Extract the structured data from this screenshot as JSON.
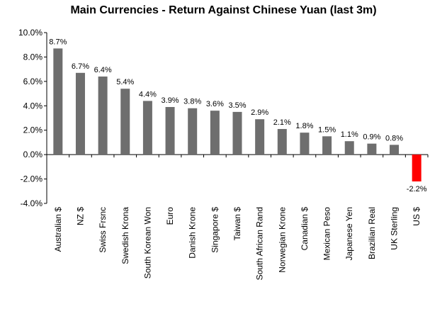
{
  "chart_data": {
    "type": "bar",
    "title": "Main Currencies - Return Against Chinese Yuan (last 3m)",
    "xlabel": "",
    "ylabel": "",
    "ylim": [
      -4.0,
      10.0
    ],
    "ytick_step": 2.0,
    "yticks": [
      "10.0%",
      "8.0%",
      "6.0%",
      "4.0%",
      "2.0%",
      "0.0%",
      "-2.0%",
      "-4.0%"
    ],
    "grid": false,
    "legend": "none",
    "categories": [
      "Australian $",
      "NZ $",
      "Swiss Frsnc",
      "Swedish Krona",
      "South Korean Won",
      "Euro",
      "Danish Krone",
      "Singapore $",
      "Taiwan $",
      "South African Rand",
      "Norwegian Krone",
      "Canadian $",
      "Mexican Peso",
      "Japanese Yen",
      "Brazilian Real",
      "UK Sterling",
      "US $"
    ],
    "values": [
      8.7,
      6.7,
      6.4,
      5.4,
      4.4,
      3.9,
      3.8,
      3.6,
      3.5,
      2.9,
      2.1,
      1.8,
      1.5,
      1.1,
      0.9,
      0.8,
      -2.2
    ],
    "data_labels": [
      "8.7%",
      "6.7%",
      "6.4%",
      "5.4%",
      "4.4%",
      "3.9%",
      "3.8%",
      "3.6%",
      "3.5%",
      "2.9%",
      "2.1%",
      "1.8%",
      "1.5%",
      "1.1%",
      "0.9%",
      "0.8%",
      "-2.2%"
    ],
    "colors": {
      "positive": "#6e6e6e",
      "negative": "#ff0000",
      "axis": "#000000"
    }
  }
}
